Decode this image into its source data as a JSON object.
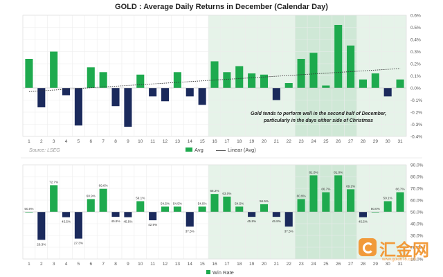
{
  "chart_data": [
    {
      "type": "bar",
      "title": "GOLD : Average Daily Returns in December (Calendar Day)",
      "categories": [
        "1",
        "2",
        "3",
        "4",
        "5",
        "6",
        "7",
        "8",
        "9",
        "10",
        "11",
        "12",
        "13",
        "14",
        "15",
        "16",
        "17",
        "18",
        "19",
        "20",
        "21",
        "22",
        "23",
        "24",
        "25",
        "26",
        "27",
        "28",
        "29",
        "30",
        "31"
      ],
      "series": [
        {
          "name": "Avg",
          "values": [
            0.24,
            -0.16,
            0.3,
            -0.06,
            -0.31,
            0.17,
            0.13,
            -0.15,
            -0.32,
            0.11,
            -0.07,
            -0.11,
            0.13,
            -0.07,
            -0.14,
            0.22,
            0.13,
            0.18,
            0.12,
            0.11,
            -0.1,
            0.04,
            0.24,
            0.29,
            0.02,
            0.52,
            0.35,
            0.07,
            0.12,
            -0.07,
            0.07
          ]
        }
      ],
      "trendline": {
        "name": "Linear (Avg)",
        "start": -0.03,
        "end": 0.16
      },
      "ylim": [
        -0.4,
        0.6
      ],
      "yticks": [
        -0.4,
        -0.3,
        -0.2,
        -0.1,
        0.0,
        0.1,
        0.2,
        0.3,
        0.4,
        0.5,
        0.6
      ],
      "ytick_labels": [
        "-0.4%",
        "-0.3%",
        "-0.2%",
        "-0.1%",
        "0.0%",
        "0.1%",
        "0.2%",
        "0.3%",
        "0.4%",
        "0.5%",
        "0.6%"
      ],
      "highlight_ranges": [
        [
          16,
          31
        ],
        [
          23,
          27
        ]
      ],
      "legend": [
        "Avg",
        "Linear (Avg)"
      ],
      "legend_position": "bottom",
      "annotation": "Gold tends to perform well in the second half of December, particularly in the days either side of Christmas",
      "source": "Source: LSEG"
    },
    {
      "type": "bar",
      "title": "",
      "categories": [
        "1",
        "2",
        "3",
        "4",
        "5",
        "6",
        "7",
        "8",
        "9",
        "10",
        "11",
        "12",
        "13",
        "14",
        "15",
        "16",
        "17",
        "18",
        "19",
        "20",
        "21",
        "22",
        "23",
        "24",
        "25",
        "26",
        "27",
        "28",
        "29",
        "30",
        "31"
      ],
      "baseline": 50.0,
      "series": [
        {
          "name": "Win Rate",
          "values": [
            50.0,
            26.3,
            72.7,
            45.5,
            27.3,
            60.9,
            69.6,
            45.8,
            45.5,
            59.1,
            42.9,
            54.5,
            54.5,
            37.5,
            54.5,
            65.2,
            63.0,
            54.5,
            45.8,
            56.5,
            45.8,
            37.5,
            60.9,
            81.0,
            66.7,
            81.0,
            69.2,
            45.5,
            50.0,
            59.1,
            66.7
          ]
        }
      ],
      "labels": [
        "50.0%",
        "26.3%",
        "72.7%",
        "45.5%",
        "27.3%",
        "60.9%",
        "69.6%",
        "45.8%",
        "45.5%",
        "59.1%",
        "42.9%",
        "54.5%",
        "54.5%",
        "37.5%",
        "54.5%",
        "65.2%",
        "63.0%",
        "54.5%",
        "45.8%",
        "56.5%",
        "45.8%",
        "37.5%",
        "60.9%",
        "81.0%",
        "66.7%",
        "81.0%",
        "69.2%",
        "45.5%",
        "50.0%",
        "59.1%",
        "66.7%"
      ],
      "ylim": [
        10.0,
        90.0
      ],
      "yticks": [
        10,
        20,
        30,
        40,
        50,
        60,
        70,
        80,
        90
      ],
      "ytick_labels": [
        "10.0%",
        "20.0%",
        "30.0%",
        "40.0%",
        "50.0%",
        "60.0%",
        "70.0%",
        "80.0%",
        "90.0%"
      ],
      "highlight_ranges": [
        [
          16,
          31
        ],
        [
          23,
          27
        ]
      ],
      "legend": [
        "Win Rate"
      ],
      "legend_position": "bottom"
    }
  ],
  "colors": {
    "positive": "#1eaa4e",
    "negative": "#1b2a5c",
    "band_light": "#e6f3e9",
    "band_dark": "#cfe8d6",
    "trend": "#333333"
  },
  "watermark": {
    "text": "汇金网",
    "sub": "www.gold678.com"
  }
}
